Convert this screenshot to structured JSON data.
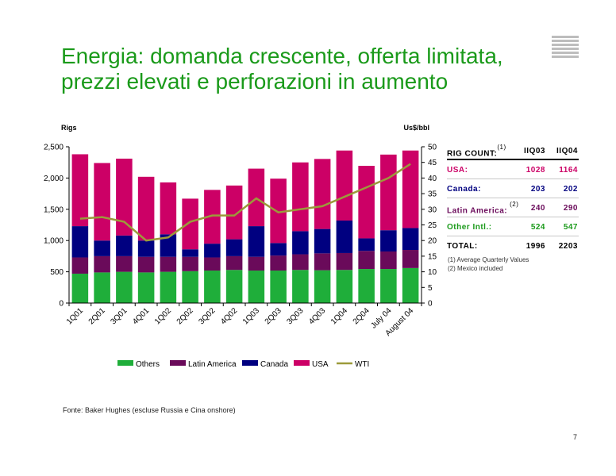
{
  "title_line1": "Energia: domanda crescente, offerta limitata,",
  "title_line2": "prezzi elevati e perforazioni in aumento",
  "source": "Fonte: Baker Hughes (escluse Russia e Cina onshore)",
  "page_number": "7",
  "rig_count": {
    "header_label": "RIG COUNT:",
    "header_note": "(1)",
    "col1": "IIQ03",
    "col2": "IIQ04",
    "rows": [
      {
        "label": "USA:",
        "note": "",
        "v1": "1028",
        "v2": "1164",
        "color": "#cc0066"
      },
      {
        "label": "Canada:",
        "note": "",
        "v1": "203",
        "v2": "202",
        "color": "#000080"
      },
      {
        "label": "Latin America:",
        "note": "(2)",
        "v1": "240",
        "v2": "290",
        "color": "#6a0a5a"
      },
      {
        "label": "Other Intl.:",
        "note": "",
        "v1": "524",
        "v2": "547",
        "color": "#1a9a1a"
      }
    ],
    "total_label": "TOTAL:",
    "total_v1": "1996",
    "total_v2": "2203",
    "notes": [
      "(1) Average Quarterly Values",
      "(2) Mexico included"
    ]
  },
  "chart_data": {
    "type": "bar",
    "stacked": true,
    "categories": [
      "1Q01",
      "2Q01",
      "3Q01",
      "4Q01",
      "1Q02",
      "2Q02",
      "3Q02",
      "4Q02",
      "1Q03",
      "2Q03",
      "3Q03",
      "4Q03",
      "1Q04",
      "2Q04",
      "July 04",
      "August 04"
    ],
    "series": [
      {
        "name": "Others",
        "color": "#1fae3a",
        "axis": "left",
        "values": [
          470,
          490,
          500,
          490,
          500,
          510,
          520,
          530,
          520,
          520,
          530,
          525,
          530,
          545,
          545,
          560
        ]
      },
      {
        "name": "Latin America",
        "color": "#6a0a5a",
        "axis": "left",
        "values": [
          260,
          260,
          250,
          250,
          240,
          230,
          210,
          220,
          220,
          240,
          250,
          270,
          270,
          290,
          280,
          290
        ]
      },
      {
        "name": "Canada",
        "color": "#000080",
        "axis": "left",
        "values": [
          500,
          250,
          330,
          260,
          360,
          120,
          220,
          270,
          490,
          200,
          370,
          390,
          520,
          200,
          340,
          350
        ]
      },
      {
        "name": "USA",
        "color": "#cc0066",
        "axis": "left",
        "values": [
          1150,
          1240,
          1230,
          1020,
          830,
          810,
          860,
          860,
          920,
          1030,
          1100,
          1120,
          1120,
          1160,
          1210,
          1240
        ]
      },
      {
        "name": "WTI",
        "type": "line",
        "color": "#9c9a3a",
        "axis": "right",
        "values": [
          27,
          27.5,
          26,
          20,
          21,
          26,
          28,
          28,
          33.5,
          29,
          30,
          31,
          34,
          37,
          40,
          44.5
        ]
      }
    ],
    "ylabel": "Rigs",
    "y2label": "Us$/bbl",
    "ylim": [
      0,
      2500
    ],
    "y2lim": [
      0,
      50
    ],
    "yticks": [
      "0",
      "500",
      "1,000",
      "1,500",
      "2,000",
      "2,500"
    ],
    "y2ticks": [
      "0",
      "5",
      "10",
      "15",
      "20",
      "25",
      "30",
      "35",
      "40",
      "45",
      "50"
    ],
    "legend_position": "bottom"
  }
}
